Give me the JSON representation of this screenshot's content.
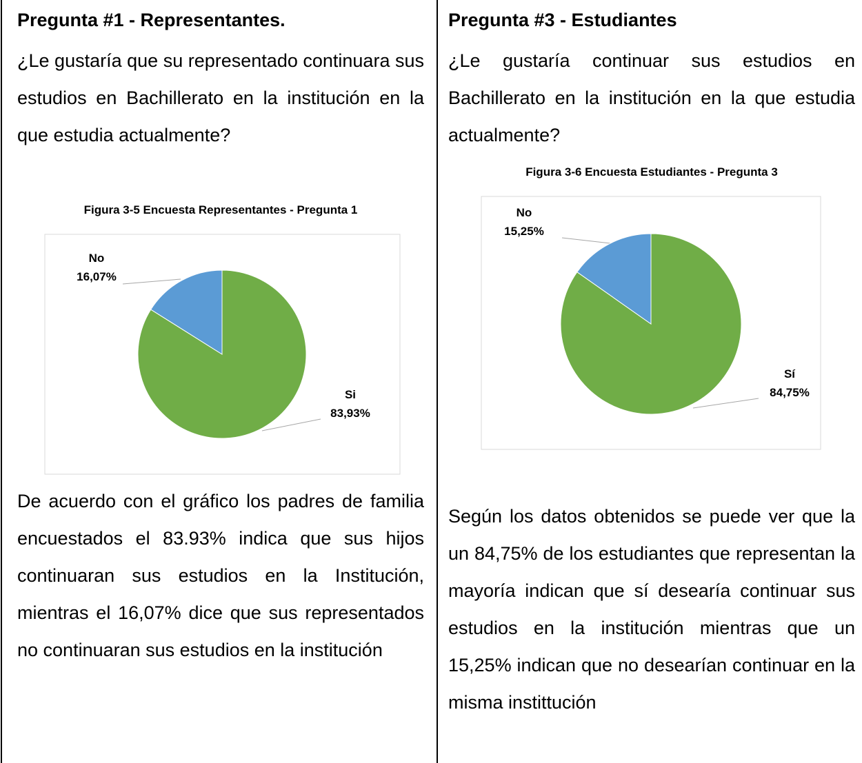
{
  "columns": [
    {
      "heading": "Pregunta #1 - Representantes.",
      "question": "¿Le gustaría que su representado continuara sus estudios en Bachillerato en la institución en la que estudia actualmente?",
      "caption": "Figura 3-5 Encuesta Representantes - Pregunta 1",
      "paragraph": "De acuerdo con el gráfico los padres de familia encuestados el 83.93% indica que sus hijos continuaran sus estudios en la Institución, mientras el 16,07% dice que sus representados no continuaran sus estudios en la institución"
    },
    {
      "heading": "Pregunta #3 - Estudiantes",
      "question": "¿Le gustaría continuar sus estudios en Bachillerato en la institución en la que estudia actualmente?",
      "caption": "Figura 3-6 Encuesta Estudiantes - Pregunta 3",
      "paragraph": "Según los datos obtenidos se puede ver que la un 84,75% de los estudiantes que representan la mayoría indican que sí desearía continuar sus estudios en la institución mientras que un 15,25% indican que no desearían continuar en la misma instittución"
    }
  ],
  "chart_data": [
    {
      "type": "pie",
      "categories": [
        "Si",
        "No"
      ],
      "values": [
        83.93,
        16.07
      ],
      "value_labels": [
        "83,93%",
        "16,07%"
      ],
      "colors": [
        "#70ad47",
        "#5b9bd5"
      ]
    },
    {
      "type": "pie",
      "categories": [
        "Sí",
        "No"
      ],
      "values": [
        84.75,
        15.25
      ],
      "value_labels": [
        "84,75%",
        "15,25%"
      ],
      "colors": [
        "#70ad47",
        "#5b9bd5"
      ]
    }
  ]
}
